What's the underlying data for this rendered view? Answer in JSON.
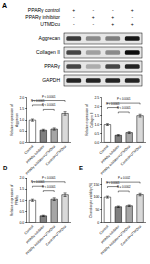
{
  "blot": {
    "panel_label": "A",
    "conditions": [
      {
        "name": "PPARγ control",
        "signs": [
          "+",
          "-",
          "-",
          "+"
        ]
      },
      {
        "name": "PPARγ inhibitor",
        "signs": [
          "-",
          "+",
          "+",
          "-"
        ]
      },
      {
        "name": "UTMDcu",
        "signs": [
          "-",
          "-",
          "+",
          "+"
        ]
      }
    ],
    "proteins": [
      {
        "name": "Aggrecan",
        "intensity": [
          0.75,
          0.4,
          0.45,
          0.9
        ]
      },
      {
        "name": "Collagen II",
        "intensity": [
          0.7,
          0.3,
          0.4,
          0.95
        ]
      },
      {
        "name": "PPARγ",
        "intensity": [
          0.7,
          0.25,
          0.7,
          0.85
        ]
      },
      {
        "name": "GAPDH",
        "intensity": [
          0.85,
          0.85,
          0.85,
          0.85
        ]
      }
    ]
  },
  "chart_data": [
    {
      "panel_label": "B",
      "type": "bar",
      "ylabel": "Relative expression of\nAggrecan",
      "categories": [
        "Control",
        "PPARγ inhibitor",
        "PPARγ inhibitor+UTMDcu",
        "Control+UTMDcu"
      ],
      "values": [
        1.0,
        0.55,
        0.6,
        1.3
      ],
      "errors": [
        0.05,
        0.04,
        0.05,
        0.08
      ],
      "colors": [
        "#ffffff",
        "#7f7f7f",
        "#a6a6a6",
        "#d9d9d9"
      ],
      "ylim": [
        0,
        2
      ],
      "yticks": [
        {
          "value": 0,
          "label": "0.0"
        },
        0.5,
        {
          "value": 1,
          "label": "1.0"
        },
        1.5,
        {
          "value": 2,
          "label": "2.0"
        }
      ],
      "comparisons": [
        {
          "pair": [
            "PPARγ inhibitor",
            "PPARγ inhibitor+UTMDcu"
          ],
          "text": "P < 0.0001"
        },
        {
          "pair": [
            "Control",
            "PPARγ inhibitor"
          ],
          "text": "P < 0.0001"
        },
        {
          "pair": [
            "Control",
            "Control+UTMDcu"
          ],
          "text": "P < 0.0001"
        }
      ]
    },
    {
      "panel_label": "C",
      "type": "bar",
      "ylabel": "Relative expression of\nCollagen II",
      "categories": [
        "Control",
        "PPARγ inhibitor",
        "PPARγ inhibitor+UTMDcu",
        "Control+UTMDcu"
      ],
      "values": [
        1.0,
        0.4,
        0.55,
        1.5
      ],
      "errors": [
        0.05,
        0.04,
        0.05,
        0.08
      ],
      "colors": [
        "#ffffff",
        "#7f7f7f",
        "#a6a6a6",
        "#d9d9d9"
      ],
      "ylim": [
        0,
        2.5
      ],
      "yticks": [
        {
          "value": 0,
          "label": "0.0"
        },
        0.5,
        {
          "value": 1,
          "label": "1.0"
        },
        1.5,
        {
          "value": 2,
          "label": "2.0"
        },
        2.5
      ],
      "comparisons": [
        {
          "pair": [
            "PPARγ inhibitor",
            "PPARγ inhibitor+UTMDcu"
          ],
          "text": "P < 0.0001"
        },
        {
          "pair": [
            "Control",
            "PPARγ inhibitor"
          ],
          "text": "P < 0.0001"
        },
        {
          "pair": [
            "Control",
            "Control+UTMDcu"
          ],
          "text": "P < 0.0001"
        }
      ]
    },
    {
      "panel_label": "D",
      "type": "bar",
      "ylabel": "Relative expression of\nPPARγ",
      "categories": [
        "Control",
        "PPARγ inhibitor",
        "PPARγ inhibitor+UTMDcu",
        "Control+UTMDcu"
      ],
      "values": [
        1.0,
        0.3,
        1.05,
        1.25
      ],
      "errors": [
        0.05,
        0.03,
        0.06,
        0.08
      ],
      "colors": [
        "#ffffff",
        "#7f7f7f",
        "#a6a6a6",
        "#d9d9d9"
      ],
      "ylim": [
        0,
        2
      ],
      "yticks": [
        {
          "value": 0,
          "label": "0.0"
        },
        0.5,
        {
          "value": 1,
          "label": "1.0"
        },
        1.5,
        {
          "value": 2,
          "label": "2.0"
        }
      ],
      "comparisons": [
        {
          "pair": [
            "PPARγ inhibitor",
            "PPARγ inhibitor+UTMDcu"
          ],
          "text": "P < 0.0001"
        },
        {
          "pair": [
            "Control",
            "PPARγ inhibitor"
          ],
          "text": "P < 0.0001"
        },
        {
          "pair": [
            "Control",
            "Control+UTMDcu"
          ],
          "text": "P < 0.0001"
        }
      ]
    },
    {
      "panel_label": "E",
      "type": "bar",
      "ylabel": "Chondrocyte viability (%)",
      "categories": [
        "Control",
        "PPARγ inhibitor",
        "PPARγ inhibitor+UTMDcu",
        "Control+UTMDcu"
      ],
      "values": [
        100,
        62,
        66,
        110
      ],
      "errors": [
        4,
        3,
        3,
        5
      ],
      "colors": [
        "#ffffff",
        "#7f7f7f",
        "#a6a6a6",
        "#d9d9d9"
      ],
      "ylim": [
        0,
        175
      ],
      "yticks": [
        0,
        50,
        100,
        150
      ],
      "comparisons": [
        {
          "pair": [
            "PPARγ inhibitor",
            "PPARγ inhibitor+UTMDcu"
          ],
          "text": "P = 0.0002"
        },
        {
          "pair": [
            "Control",
            "PPARγ inhibitor"
          ],
          "text": "P < 0.0001"
        },
        {
          "pair": [
            "Control",
            "Control+UTMDcu"
          ],
          "text": "P = 0.002"
        }
      ]
    }
  ]
}
